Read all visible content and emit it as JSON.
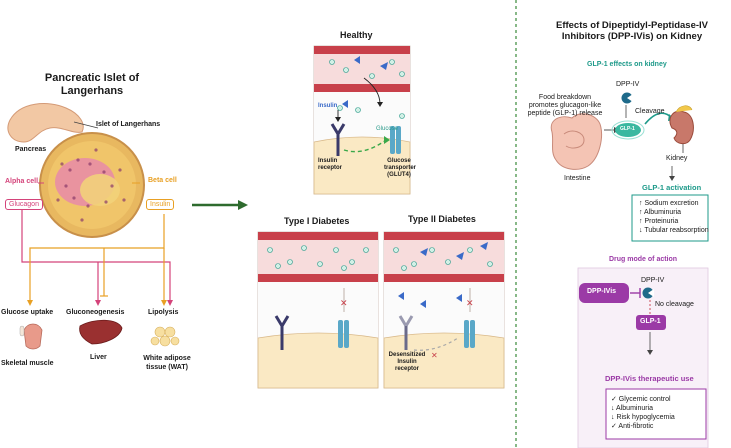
{
  "left": {
    "title_line1": "Pancreatic Islet of",
    "title_line2": "Langerhans",
    "islet_label": "Islet of Langerhans",
    "pancreas_label": "Pancreas",
    "alpha_cell": "Alpha cell",
    "beta_cell": "Beta cell",
    "glucagon": "Glucagon",
    "insulin": "Insulin",
    "targets": [
      {
        "process": "Glucose uptake",
        "tissue": "Skeletal muscle"
      },
      {
        "process": "Gluconeogenesis",
        "tissue": "Liver"
      },
      {
        "process": "Lipolysis",
        "tissue_line1": "White adipose",
        "tissue_line2": "tissue (WAT)"
      }
    ]
  },
  "middle": {
    "healthy_title": "Healthy",
    "insulin_label": "Insulin",
    "glucose_label": "Glucose",
    "insulin_receptor_l1": "Insulin",
    "insulin_receptor_l2": "receptor",
    "glut_l1": "Glucose",
    "glut_l2": "transporter",
    "glut_l3": "(GLUT4)",
    "type1_title": "Type I Diabetes",
    "type2_title": "Type II Diabetes",
    "desens_l1": "Desensitized",
    "desens_l2": "Insulin",
    "desens_l3": "receptor"
  },
  "right": {
    "title_line1": "Effects of Dipeptidyl-Peptidase-IV",
    "title_line2": "Inhibitors (DPP-IVis) on Kidney",
    "glp1_effects": "GLP-1 effects on kidney",
    "dppiv": "DPP-IV",
    "cleavage": "Cleavage",
    "food_l1": "Food breakdown",
    "food_l2": "promotes glucagon-like",
    "food_l3": "peptide (GLP-1) release",
    "glp1": "GLP-1",
    "kidney": "Kidney",
    "intestine": "Intestine",
    "activation_title": "GLP-1 activation",
    "activation_items": [
      "↑ Sodium excretion",
      "↑ Albuminuria",
      "↑ Proteinuria",
      "↓ Tubular reabsorption"
    ],
    "drug_mode": "Drug mode of action",
    "dppivis": "DPP-IVis",
    "dppiv2": "DPP-IV",
    "no_cleavage": "No cleavage",
    "glp1_2": "GLP-1",
    "therapeutic_title": "DPP-IVis therapeutic use",
    "therapeutic_items": [
      "✓ Glycemic control",
      "↓ Albuminuria",
      "↓ Risk hypoglycemia",
      "✓ Anti-fibrotic"
    ]
  },
  "colors": {
    "pink": "#d4437a",
    "orange": "#e8a024",
    "teal": "#1e9a8a",
    "purple": "#9b3aa6",
    "green_arrow": "#2e6b2e"
  }
}
